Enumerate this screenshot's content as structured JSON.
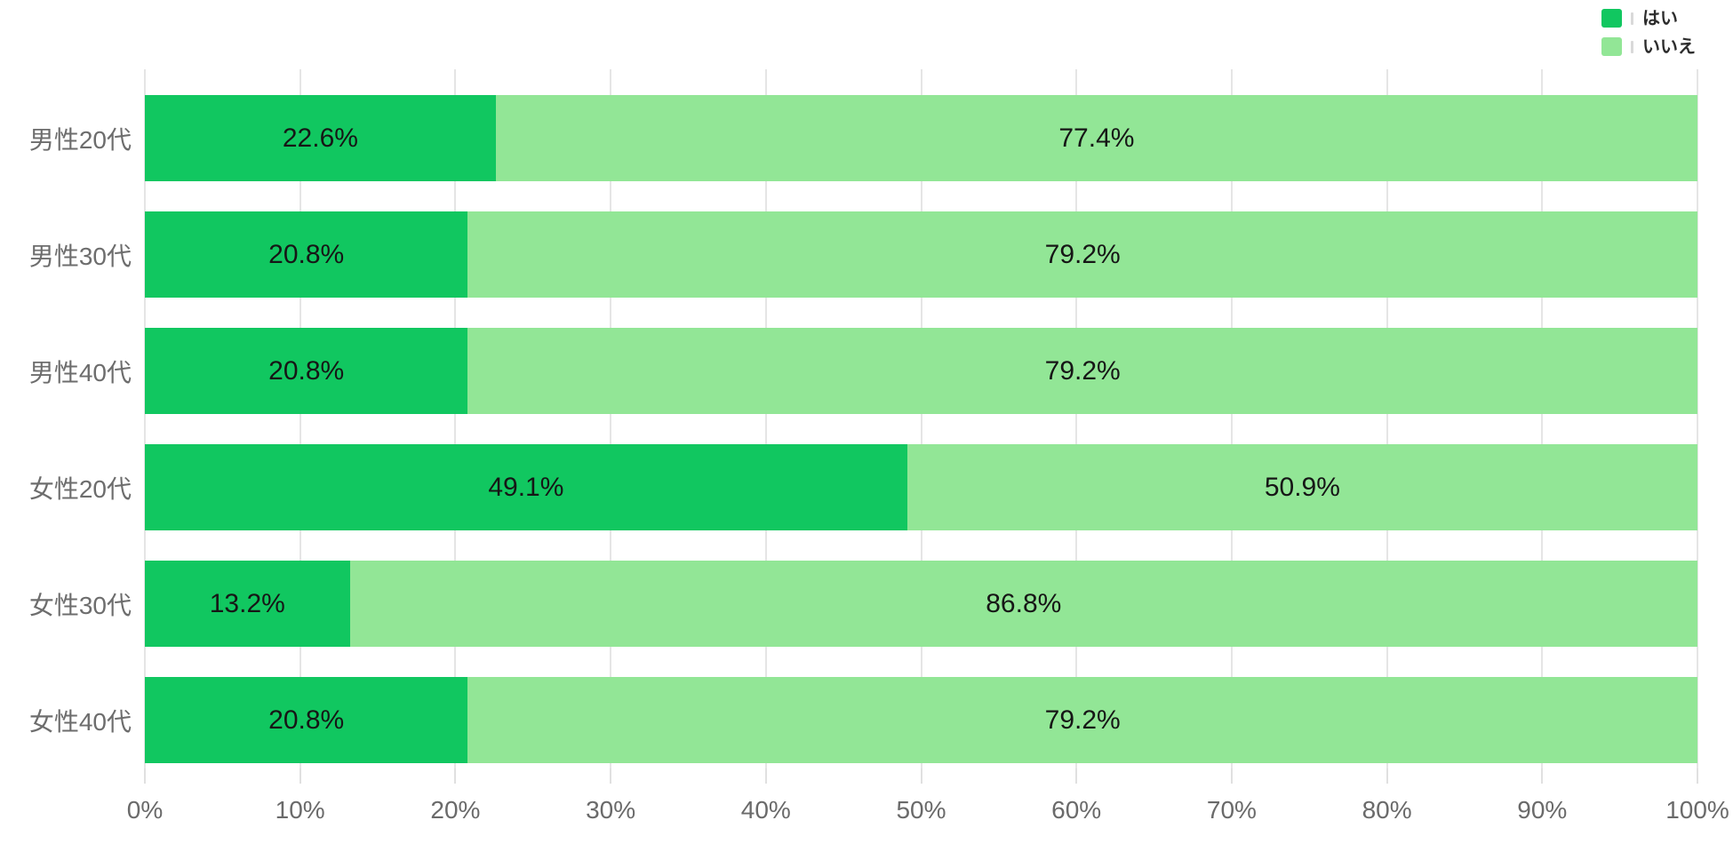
{
  "chart_data": {
    "type": "bar",
    "orientation": "horizontal",
    "stacked": true,
    "title": "",
    "xlabel": "",
    "ylabel": "",
    "xlim": [
      0,
      100
    ],
    "grid": true,
    "legend_position": "top-right",
    "value_suffix": "%",
    "categories": [
      "男性20代",
      "男性30代",
      "男性40代",
      "女性20代",
      "女性30代",
      "女性40代"
    ],
    "series": [
      {
        "name": "はい",
        "color": "#11c760",
        "values": [
          22.6,
          20.8,
          20.8,
          49.1,
          13.2,
          20.8
        ]
      },
      {
        "name": "いいえ",
        "color": "#92e696",
        "values": [
          77.4,
          79.2,
          79.2,
          50.9,
          86.8,
          79.2
        ]
      }
    ],
    "x_ticks": [
      "0%",
      "10%",
      "20%",
      "30%",
      "40%",
      "50%",
      "60%",
      "70%",
      "80%",
      "90%",
      "100%"
    ]
  },
  "colors": {
    "background": "#ffffff",
    "gridline": "#e5e5e5",
    "axis_text": "#6a6a6a",
    "category_text": "#6d6d6d",
    "value_text": "#161616",
    "legend_text": "#2c2c2c"
  }
}
